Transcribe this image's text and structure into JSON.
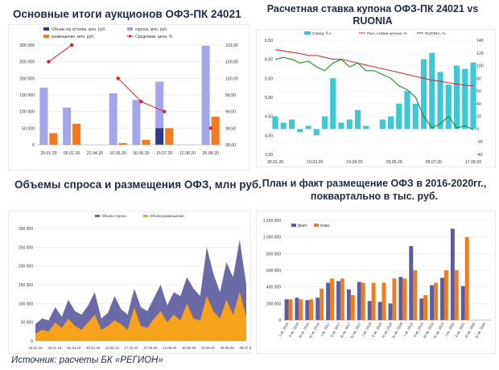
{
  "titles": {
    "tl": "Основные итоги аукционов ОФЗ-ПК 24021",
    "tr_line1": "Расчетная ставка купона ОФЗ-ПК 24021 vs",
    "tr_line2": "RUONIA",
    "bl": "Объемы спроса и размещения ОФЗ, млн руб.",
    "br_line1": "План и факт размещение ОФЗ в 2016-2020гг.,",
    "br_line2": "поквартально в тыс. руб."
  },
  "source": "Источник:  расчеты БК «РЕГИОН»",
  "colors": {
    "demand": "#a4a6ec",
    "placement": "#f47a20",
    "remaining": "#2d3a8c",
    "avg_price": "#e02020",
    "spread": "#3fc7d6",
    "coupon": "#d03030",
    "ruonia": "#1e8a2a",
    "area_demand": "#6b6aa8",
    "area_placement": "#f7a21b",
    "fact": "#5b5ca0",
    "plan": "#f47a20"
  },
  "chart_data": [
    {
      "id": "auctions",
      "type": "bar",
      "legend": [
        "Объем н/р остатка, млн. руб.",
        "спроса, млн. руб.",
        "размещение, млн. руб.",
        "Средневзв. цена, %"
      ],
      "categories": [
        "29.01.20",
        "05.02.20",
        "22.04.20",
        "10.06.20",
        "30.06.20",
        "15.07.20",
        "12.08.20",
        "26.08.20"
      ],
      "series": [
        {
          "name": "спроса, млн. руб.",
          "values": [
            172,
            112,
            0,
            155,
            135,
            190,
            0,
            298
          ]
        },
        {
          "name": "размещение, млн. руб.",
          "values": [
            35,
            63,
            0,
            5,
            15,
            50,
            0,
            85
          ]
        },
        {
          "name": "Объем н/р остатка, млн. руб.",
          "values": [
            0,
            0,
            0,
            0,
            0,
            50,
            0,
            0
          ]
        }
      ],
      "price": [
        100.5,
        101.0,
        null,
        100.0,
        99.3,
        99.0,
        null,
        98.5
      ],
      "y_ticks": [
        "0",
        "50 000",
        "100 000",
        "150 000",
        "200 000",
        "250 000",
        "300 000"
      ],
      "y2_ticks": [
        "98,00",
        "98,50",
        "99,00",
        "99,50",
        "100,00",
        "100,50",
        "101,00"
      ],
      "ylim": [
        0,
        300
      ],
      "y2lim": [
        98,
        101
      ]
    },
    {
      "id": "coupon_vs_ruonia",
      "type": "line",
      "legend": [
        "Спред, б.п.",
        "Расч.ставки купона, %",
        "RUONIA, %"
      ],
      "x_ticks": [
        "30.01.20",
        "10.03.20",
        "19.04.20",
        "29.05.20",
        "08.07.20",
        "17.08.20"
      ],
      "y_ticks": [
        "3,50",
        "4,00",
        "4,50",
        "5,00",
        "5,50",
        "6,00",
        "6,50"
      ],
      "y2_ticks": [
        "-40",
        "-20",
        "0",
        "20",
        "40",
        "60",
        "80",
        "100",
        "120",
        "140"
      ],
      "ylim": [
        3.5,
        6.5
      ],
      "y2lim": [
        -40,
        140
      ],
      "coupon": [
        6.25,
        6.22,
        6.18,
        6.15,
        6.1,
        6.1,
        6.05,
        6.0,
        6.0,
        5.95,
        5.9,
        5.85,
        5.8,
        5.75,
        5.7,
        5.65,
        5.6,
        5.55,
        5.5,
        5.45,
        5.42,
        5.38,
        5.35,
        5.32,
        5.3
      ],
      "ruonia": [
        6.0,
        6.05,
        6.0,
        5.9,
        5.95,
        5.8,
        5.7,
        5.9,
        6.0,
        5.8,
        5.9,
        5.7,
        5.7,
        5.6,
        5.5,
        5.3,
        5.2,
        5.0,
        4.5,
        4.2,
        4.3,
        4.5,
        4.2,
        4.25,
        4.15
      ],
      "spread": [
        20,
        10,
        15,
        -5,
        5,
        -10,
        20,
        80,
        10,
        15,
        30,
        5,
        0,
        15,
        20,
        40,
        60,
        40,
        110,
        120,
        90,
        70,
        100,
        95,
        105
      ]
    },
    {
      "id": "ofz_volumes",
      "type": "area",
      "legend": [
        "Объем спроса",
        "Объем размещения"
      ],
      "x_ticks": [
        "23.01.19",
        "25.01.19",
        "01.04.19",
        "20.04.19",
        "12.05.19",
        "17.02.20",
        "27.04.20",
        "12.05.20",
        "20.05.20",
        "02.06.20",
        "29.06.20",
        "08.07.20"
      ],
      "y_ticks": [
        "0",
        "50 000",
        "100 000",
        "150 000",
        "200 000",
        "250 000",
        "300 000"
      ],
      "ylim": [
        0,
        300
      ],
      "demand": [
        45,
        60,
        55,
        90,
        65,
        110,
        80,
        70,
        95,
        130,
        60,
        75,
        120,
        85,
        70,
        140,
        90,
        80,
        115,
        150,
        95,
        130,
        120,
        170,
        140,
        120,
        250,
        180,
        130,
        210,
        170,
        270,
        150
      ],
      "placement": [
        20,
        30,
        25,
        50,
        35,
        60,
        40,
        30,
        50,
        70,
        30,
        40,
        55,
        45,
        30,
        90,
        40,
        35,
        60,
        80,
        50,
        70,
        55,
        100,
        60,
        55,
        120,
        80,
        60,
        110,
        70,
        130,
        65
      ]
    },
    {
      "id": "plan_fact",
      "type": "bar",
      "legend": [
        "факт.",
        "план."
      ],
      "categories": [
        "I кв. 2016",
        "II кв. 2016",
        "III кв. 2016",
        "IV кв. 2016",
        "I кв. 2017",
        "II кв. 2017",
        "III кв. 2017",
        "IV кв. 2017",
        "I кв. 2018",
        "II кв. 2018",
        "III кв. 2018",
        "IV кв. 2018",
        "I кв. 2019",
        "II кв. 2019",
        "III кв. 2019",
        "IV кв. 2019",
        "I кв. 2020",
        "II кв. 2020",
        "III кв. 2020",
        "IV кв. 2020"
      ],
      "series": [
        {
          "name": "факт.",
          "values": [
            250,
            270,
            240,
            270,
            450,
            470,
            370,
            460,
            230,
            220,
            200,
            520,
            890,
            260,
            420,
            510,
            1100,
            410,
            0,
            0
          ]
        },
        {
          "name": "план.",
          "values": [
            250,
            250,
            250,
            380,
            500,
            500,
            300,
            450,
            450,
            450,
            500,
            500,
            600,
            300,
            450,
            600,
            600,
            1000,
            0,
            0
          ]
        }
      ],
      "y_ticks": [
        "0",
        "200 000",
        "400 000",
        "600 000",
        "800 000",
        "1 000 000",
        "1 200 000"
      ],
      "ylim": [
        0,
        1200
      ]
    }
  ]
}
